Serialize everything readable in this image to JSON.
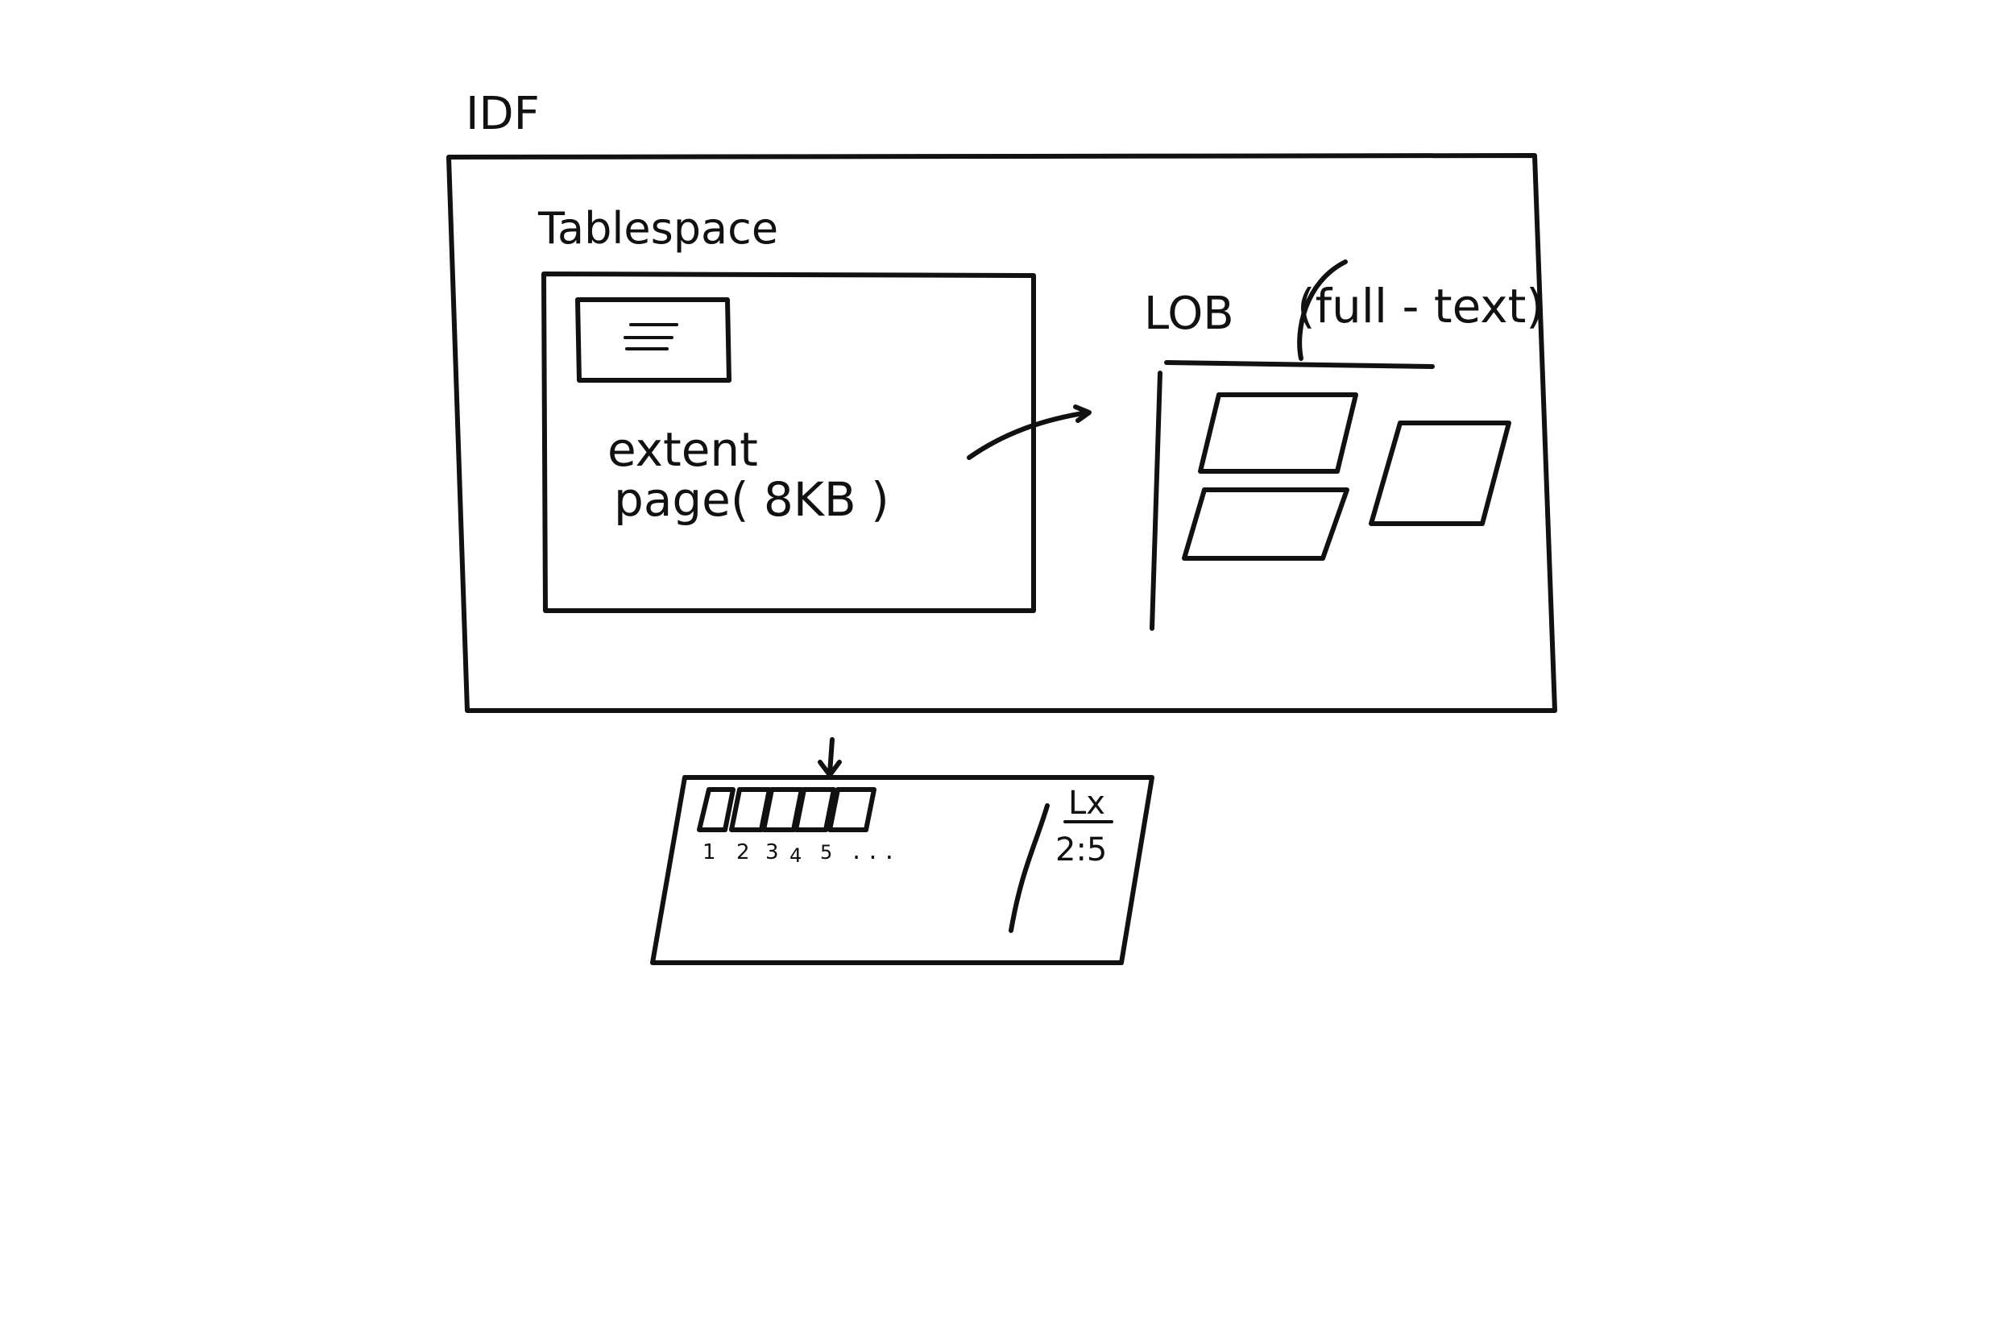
{
  "labels": {
    "ibd": "IDF",
    "tablespace": "Tablespace",
    "extent": "extent",
    "page": "page( 8KB )",
    "lob": "LOB",
    "fulltext": "(full - text)",
    "lx": "Lx",
    "ratio": "2:5",
    "page_numbers": [
      "1",
      "2",
      "3",
      "4",
      "5",
      ". . ."
    ]
  },
  "colors": {
    "ink": "#111111",
    "background": "#ffffff"
  }
}
